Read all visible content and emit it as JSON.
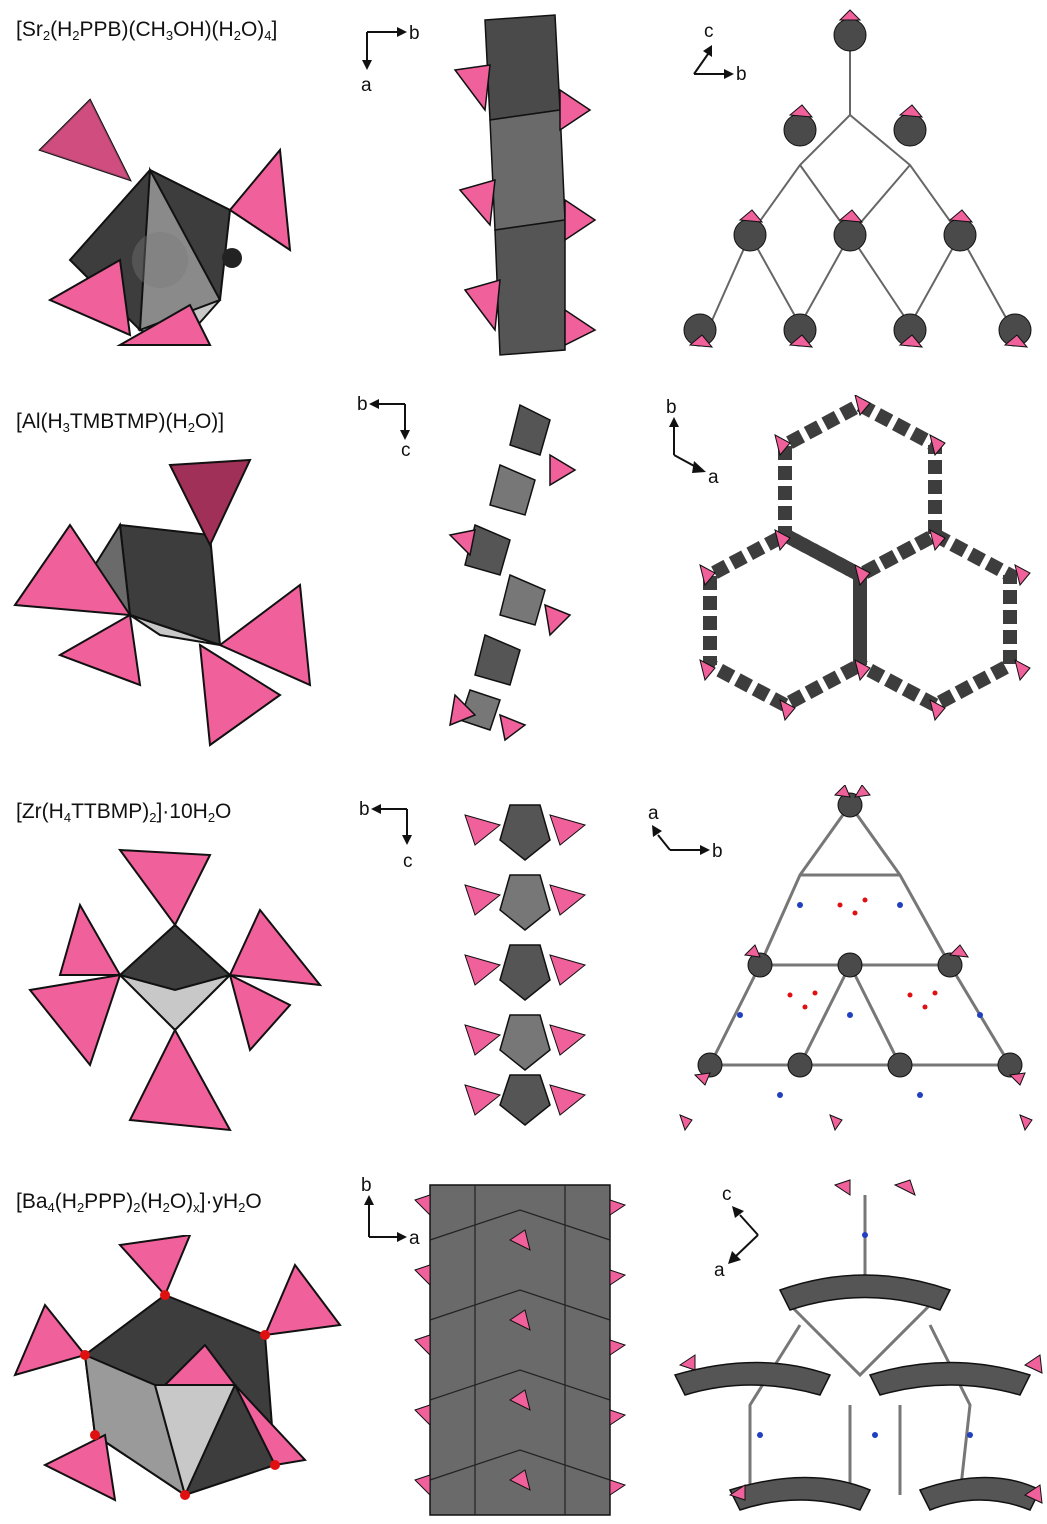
{
  "colors": {
    "polyhedron_dark": "#3d3d3d",
    "polyhedron_mid": "#8a8a8a",
    "polyhedron_light": "#c8c8c8",
    "tetra_pink": "#f0609a",
    "tetra_dark": "#a03058",
    "oxygen_red": "#e01010",
    "nitrogen_blue": "#2040c0",
    "carbon_gray": "#555555"
  },
  "rows": [
    {
      "formula_parts": [
        {
          "t": "[Sr"
        },
        {
          "s": "2"
        },
        {
          "t": "(H"
        },
        {
          "s": "2"
        },
        {
          "t": "PPB)(CH"
        },
        {
          "s": "3"
        },
        {
          "t": "OH)(H"
        },
        {
          "s": "2"
        },
        {
          "t": "O)"
        },
        {
          "s": "4"
        },
        {
          "t": "]"
        }
      ],
      "axes_chain": {
        "h": "b",
        "v": "a"
      },
      "axes_net": {
        "h": "b",
        "v": "c"
      }
    },
    {
      "formula_parts": [
        {
          "t": "[Al(H"
        },
        {
          "s": "3"
        },
        {
          "t": "TMBTMP)(H"
        },
        {
          "s": "2"
        },
        {
          "t": "O)]"
        }
      ],
      "axes_chain": {
        "h": "b",
        "v": "c"
      },
      "axes_net": {
        "h": "a",
        "v": "b"
      }
    },
    {
      "formula_parts": [
        {
          "t": "[Zr(H"
        },
        {
          "s": "4"
        },
        {
          "t": "TTBMP)"
        },
        {
          "s": "2"
        },
        {
          "t": "]·10H"
        },
        {
          "s": "2"
        },
        {
          "t": "O"
        }
      ],
      "axes_chain": {
        "h": "b",
        "v": "c"
      },
      "axes_net": {
        "h": "b",
        "v": "a"
      }
    },
    {
      "formula_parts": [
        {
          "t": "[Ba"
        },
        {
          "s": "4"
        },
        {
          "t": "(H"
        },
        {
          "s": "2"
        },
        {
          "t": "PPP)"
        },
        {
          "s": "2"
        },
        {
          "t": "(H"
        },
        {
          "s": "2"
        },
        {
          "t": "O)"
        },
        {
          "s": "x"
        },
        {
          "t": "]·yH"
        },
        {
          "s": "2"
        },
        {
          "t": "O"
        }
      ],
      "axes_chain": {
        "h": "a",
        "v": "b"
      },
      "axes_net": {
        "h": "a",
        "v": "c"
      }
    }
  ]
}
